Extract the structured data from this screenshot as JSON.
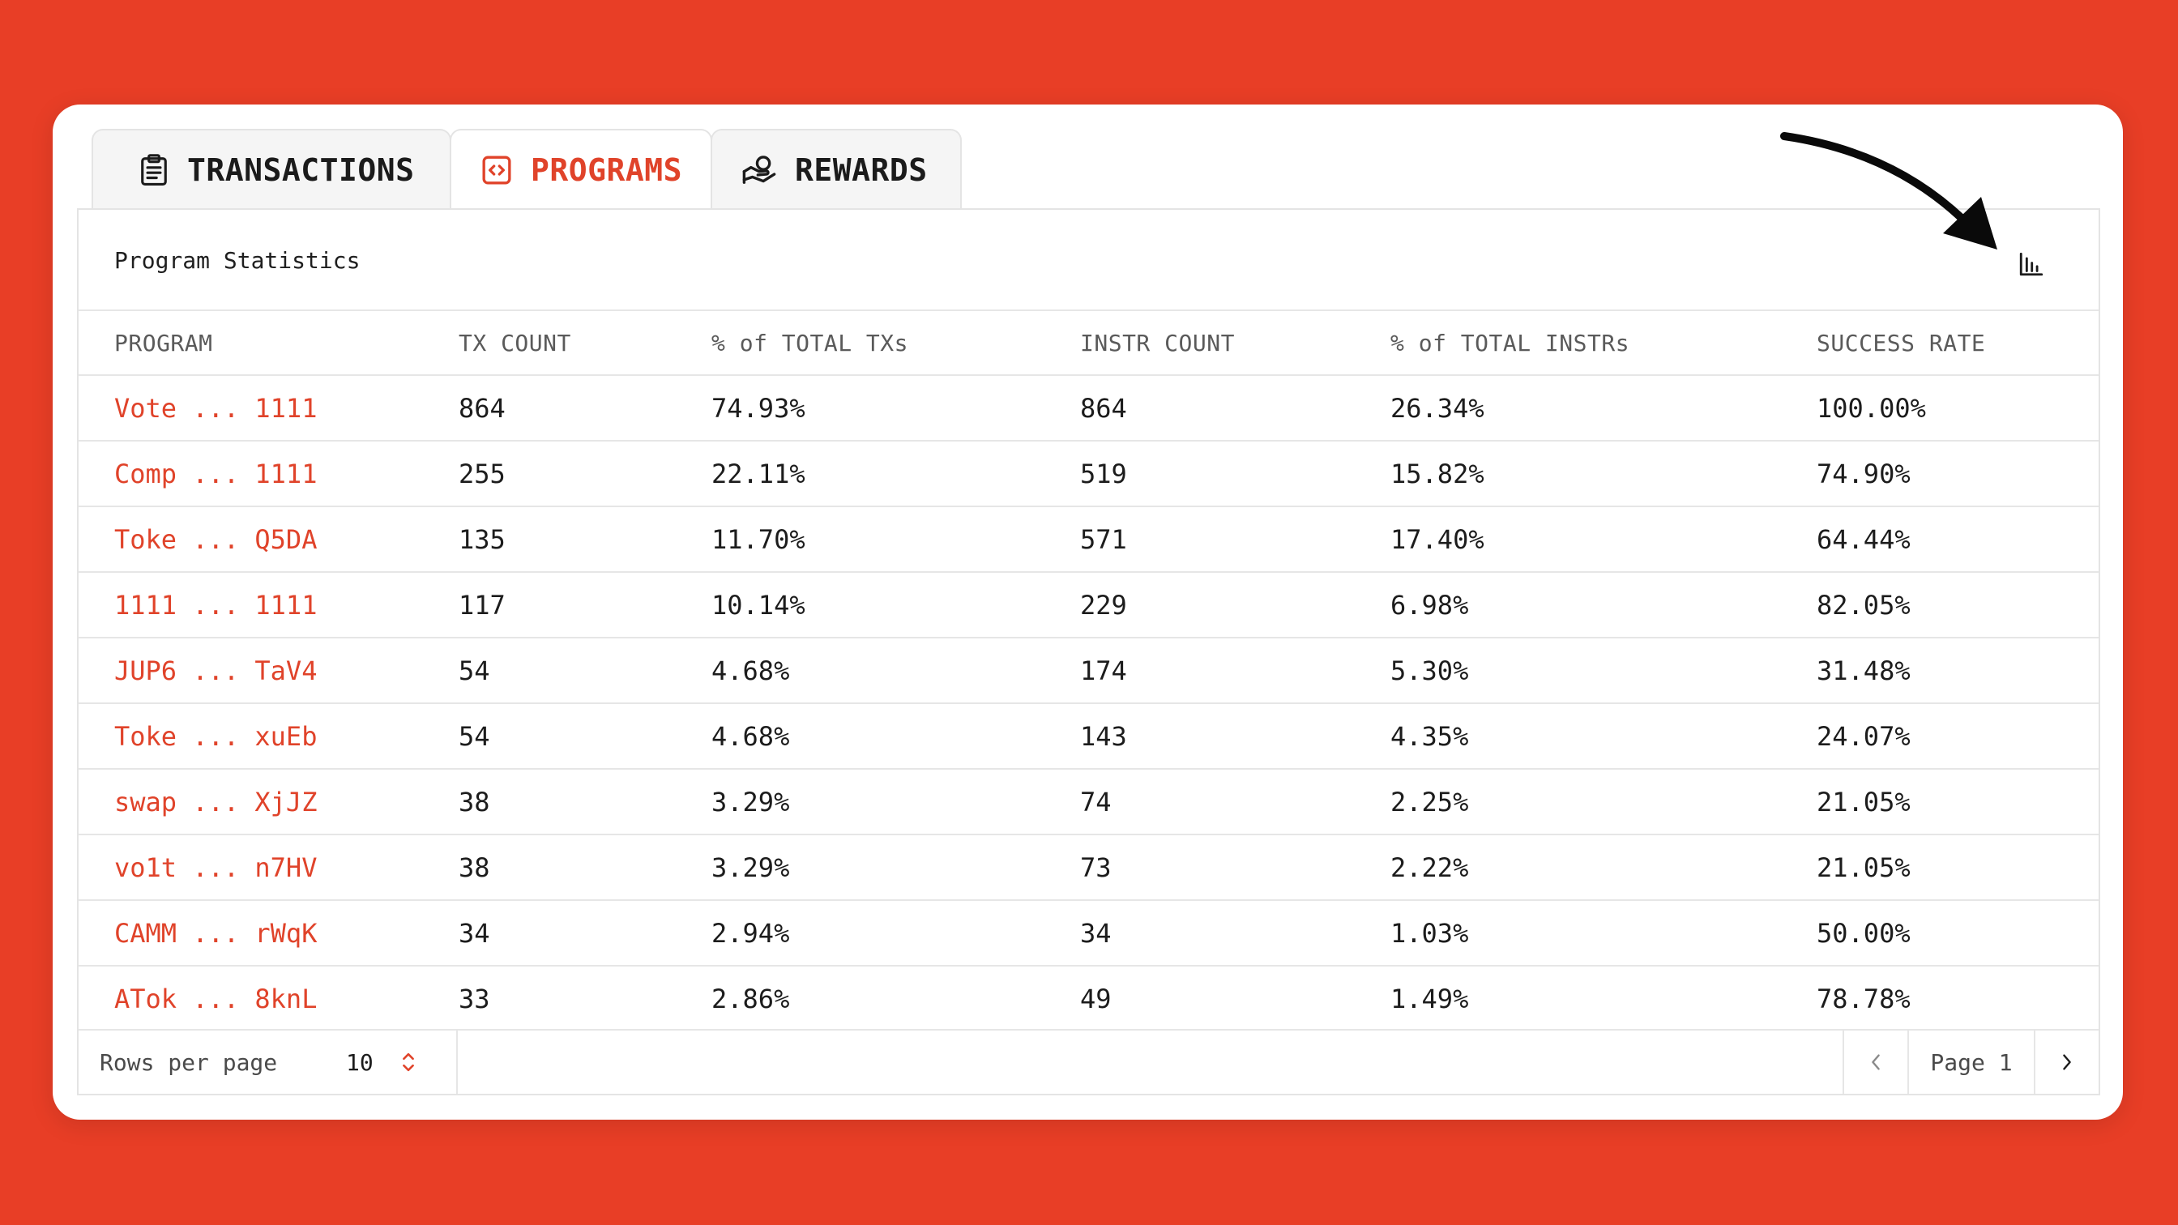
{
  "tabs": [
    {
      "label": "TRANSACTIONS",
      "icon": "clipboard-icon",
      "active": false
    },
    {
      "label": "PROGRAMS",
      "icon": "code-icon",
      "active": true
    },
    {
      "label": "REWARDS",
      "icon": "reward-hand-icon",
      "active": false
    }
  ],
  "panel": {
    "title": "Program Statistics",
    "chart_button_icon": "bar-chart-icon"
  },
  "table": {
    "headers": [
      "PROGRAM",
      "TX COUNT",
      "% of TOTAL TXs",
      "INSTR COUNT",
      "% of TOTAL INSTRs",
      "SUCCESS RATE"
    ],
    "rows": [
      [
        "Vote ... 1111",
        "864",
        "74.93%",
        "864",
        "26.34%",
        "100.00%"
      ],
      [
        "Comp ... 1111",
        "255",
        "22.11%",
        "519",
        "15.82%",
        "74.90%"
      ],
      [
        "Toke ... Q5DA",
        "135",
        "11.70%",
        "571",
        "17.40%",
        "64.44%"
      ],
      [
        "1111 ... 1111",
        "117",
        "10.14%",
        "229",
        "6.98%",
        "82.05%"
      ],
      [
        "JUP6 ... TaV4",
        "54",
        "4.68%",
        "174",
        "5.30%",
        "31.48%"
      ],
      [
        "Toke ... xuEb",
        "54",
        "4.68%",
        "143",
        "4.35%",
        "24.07%"
      ],
      [
        "swap ... XjJZ",
        "38",
        "3.29%",
        "74",
        "2.25%",
        "21.05%"
      ],
      [
        "vo1t ... n7HV",
        "38",
        "3.29%",
        "73",
        "2.22%",
        "21.05%"
      ],
      [
        "CAMM ... rWqK",
        "34",
        "2.94%",
        "34",
        "1.03%",
        "50.00%"
      ],
      [
        "ATok ... 8knL",
        "33",
        "2.86%",
        "49",
        "1.49%",
        "78.78%"
      ]
    ]
  },
  "footer": {
    "rows_per_page_label": "Rows per page",
    "rows_per_page_value": "10",
    "page_label": "Page 1"
  },
  "colors": {
    "background": "#e83e26",
    "accent": "#e0432a",
    "text": "#1c1c1c"
  }
}
